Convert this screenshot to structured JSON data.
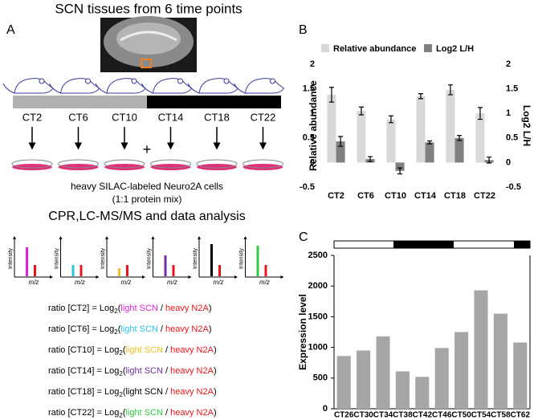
{
  "panel_labels": [
    "A",
    "B",
    "C"
  ],
  "panel_a": {
    "title": "SCN tissues from 6 time points",
    "time_points": [
      "CT2",
      "CT6",
      "CT10",
      "CT14",
      "CT18",
      "CT22"
    ],
    "plus": "+",
    "cells": "heavy SILAC-labeled Neuro2A cells",
    "mix": "(1:1 protein mix)",
    "analysis": "CPR,LC-MS/MS and data analysis",
    "intensity": "Intensity",
    "mz": "m/z",
    "heavy_color": "#e8141c",
    "ratios": [
      {
        "text": "ratio [CT2] = Log",
        "sub": "2",
        "open": "(",
        "light": "light SCN",
        "sep": " / ",
        "heavy": "heavy N2A",
        "close": ")",
        "light_color": "#e020d8"
      },
      {
        "text": "ratio [CT6] = Log",
        "sub": "2",
        "open": "(",
        "light": "light SCN",
        "sep": " / ",
        "heavy": "heavy N2A",
        "close": ")",
        "light_color": "#29c3e8"
      },
      {
        "text": "ratio [CT10] = Log",
        "sub": "2",
        "open": "(",
        "light": "light SCN",
        "sep": " / ",
        "heavy": "heavy N2A",
        "close": ")",
        "light_color": "#f0c020"
      },
      {
        "text": "ratio [CT14] = Log",
        "sub": "2",
        "open": "(",
        "light": "light SCN",
        "sep": " / ",
        "heavy": "heavy N2A",
        "close": ")",
        "light_color": "#7030a0"
      },
      {
        "text": "ratio [CT18] = Log",
        "sub": "2",
        "open": "(",
        "light": "light SCN",
        "sep": " / ",
        "heavy": "heavy N2A",
        "close": ")",
        "light_color": "#000000"
      },
      {
        "text": "ratio [CT22] = Log",
        "sub": "2",
        "open": "(",
        "light": "light SCN",
        "sep": " / ",
        "heavy": "heavy N2A",
        "close": ")",
        "light_color": "#2ecc40"
      }
    ]
  },
  "chart_data": [
    {
      "type": "bar",
      "legend": "top",
      "categories": [
        "CT2",
        "CT6",
        "CT10",
        "CT14",
        "CT18",
        "CT22"
      ],
      "series": [
        {
          "name": "Relative abundance",
          "color": "#d9d9d9",
          "values": [
            1.38,
            1.05,
            0.88,
            1.35,
            1.48,
            1.0
          ],
          "errors": [
            0.15,
            0.08,
            0.07,
            0.05,
            0.1,
            0.12
          ]
        },
        {
          "name": "Log2 L/H",
          "color": "#808080",
          "axis": "y2",
          "values": [
            0.43,
            0.07,
            -0.17,
            0.41,
            0.5,
            0.05
          ],
          "errors": [
            0.1,
            0.05,
            0.06,
            0.03,
            0.05,
            0.06
          ]
        }
      ],
      "ylabel": "Relative abundance",
      "y2label": "Log2 L/H",
      "ylim": [
        -0.5,
        2
      ],
      "yticks": [
        -0.5,
        0,
        0.5,
        1,
        1.5,
        2
      ],
      "y2lim": [
        -0.5,
        2
      ],
      "y2ticks": [
        -0.5,
        0,
        0.5,
        1,
        1.5,
        2
      ]
    },
    {
      "type": "bar",
      "categories": [
        "CT26",
        "CT30",
        "CT34",
        "CT38",
        "CT42",
        "CT46",
        "CT50",
        "CT54",
        "CT58",
        "CT62"
      ],
      "values": [
        860,
        950,
        1180,
        610,
        520,
        990,
        1250,
        1930,
        1550,
        1080
      ],
      "color": "#a6a6a6",
      "ylabel": "Expression level",
      "ylim": [
        0,
        2500
      ],
      "yticks": [
        0,
        500,
        1000,
        1500,
        2000,
        2500
      ]
    }
  ]
}
